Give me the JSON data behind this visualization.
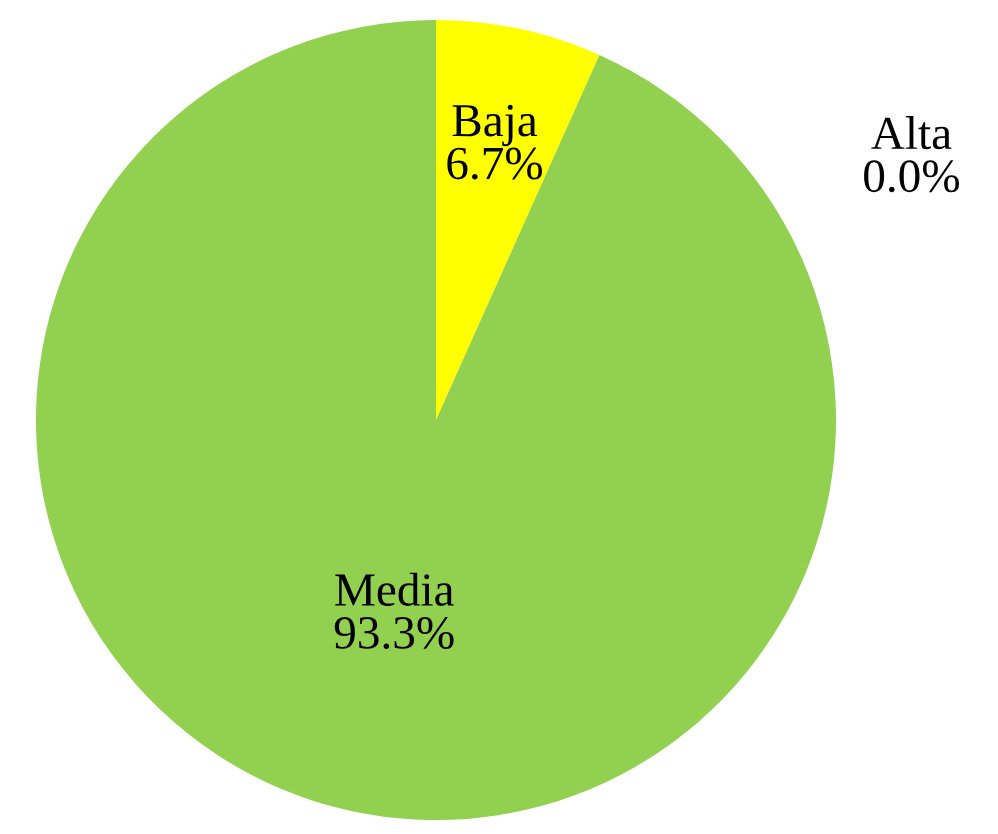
{
  "chart_data": {
    "type": "pie",
    "categories": [
      "Baja",
      "Alta",
      "Media"
    ],
    "values": [
      6.7,
      0.0,
      93.3
    ],
    "value_labels": [
      "6.7%",
      "0.0%",
      "93.3%"
    ],
    "colors": [
      "#ffff00",
      "#ffc000",
      "#92d050"
    ],
    "legend": false
  }
}
